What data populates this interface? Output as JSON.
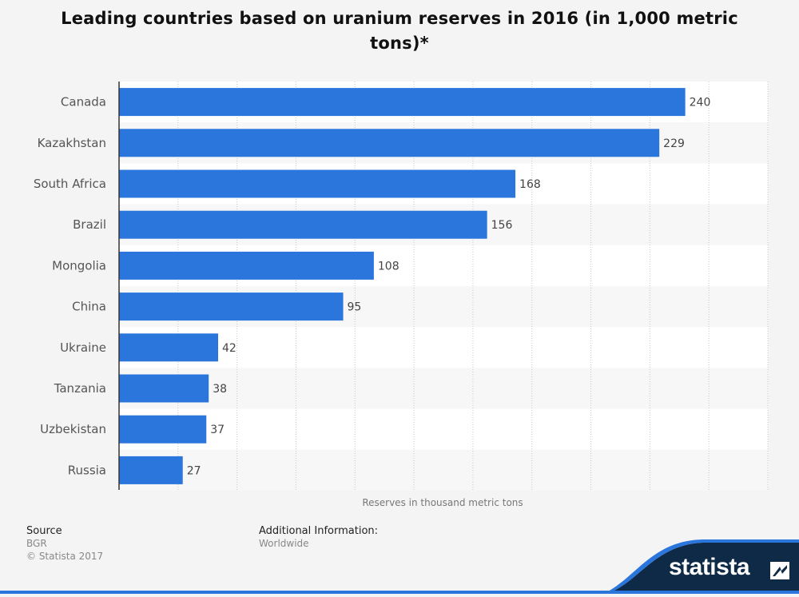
{
  "title": "Leading countries based on uranium reserves in 2016 (in 1,000 metric tons)*",
  "footer": {
    "source_label": "Source",
    "source_value": "BGR",
    "copyright": "© Statista 2017",
    "additional_label": "Additional Information:",
    "additional_value": "Worldwide"
  },
  "brand": {
    "name": "statista",
    "color": "#0e2a47",
    "accent": "#2a76dd"
  },
  "chart_data": {
    "type": "bar",
    "orientation": "horizontal",
    "categories": [
      "Canada",
      "Kazakhstan",
      "South Africa",
      "Brazil",
      "Mongolia",
      "China",
      "Ukraine",
      "Tanzania",
      "Uzbekistan",
      "Russia"
    ],
    "values": [
      240,
      229,
      168,
      156,
      108,
      95,
      42,
      38,
      37,
      27
    ],
    "xlabel": "Reserves in thousand metric tons",
    "ylabel": "",
    "xlim": [
      0,
      275
    ],
    "grid": true,
    "bar_color": "#2a76dd"
  }
}
